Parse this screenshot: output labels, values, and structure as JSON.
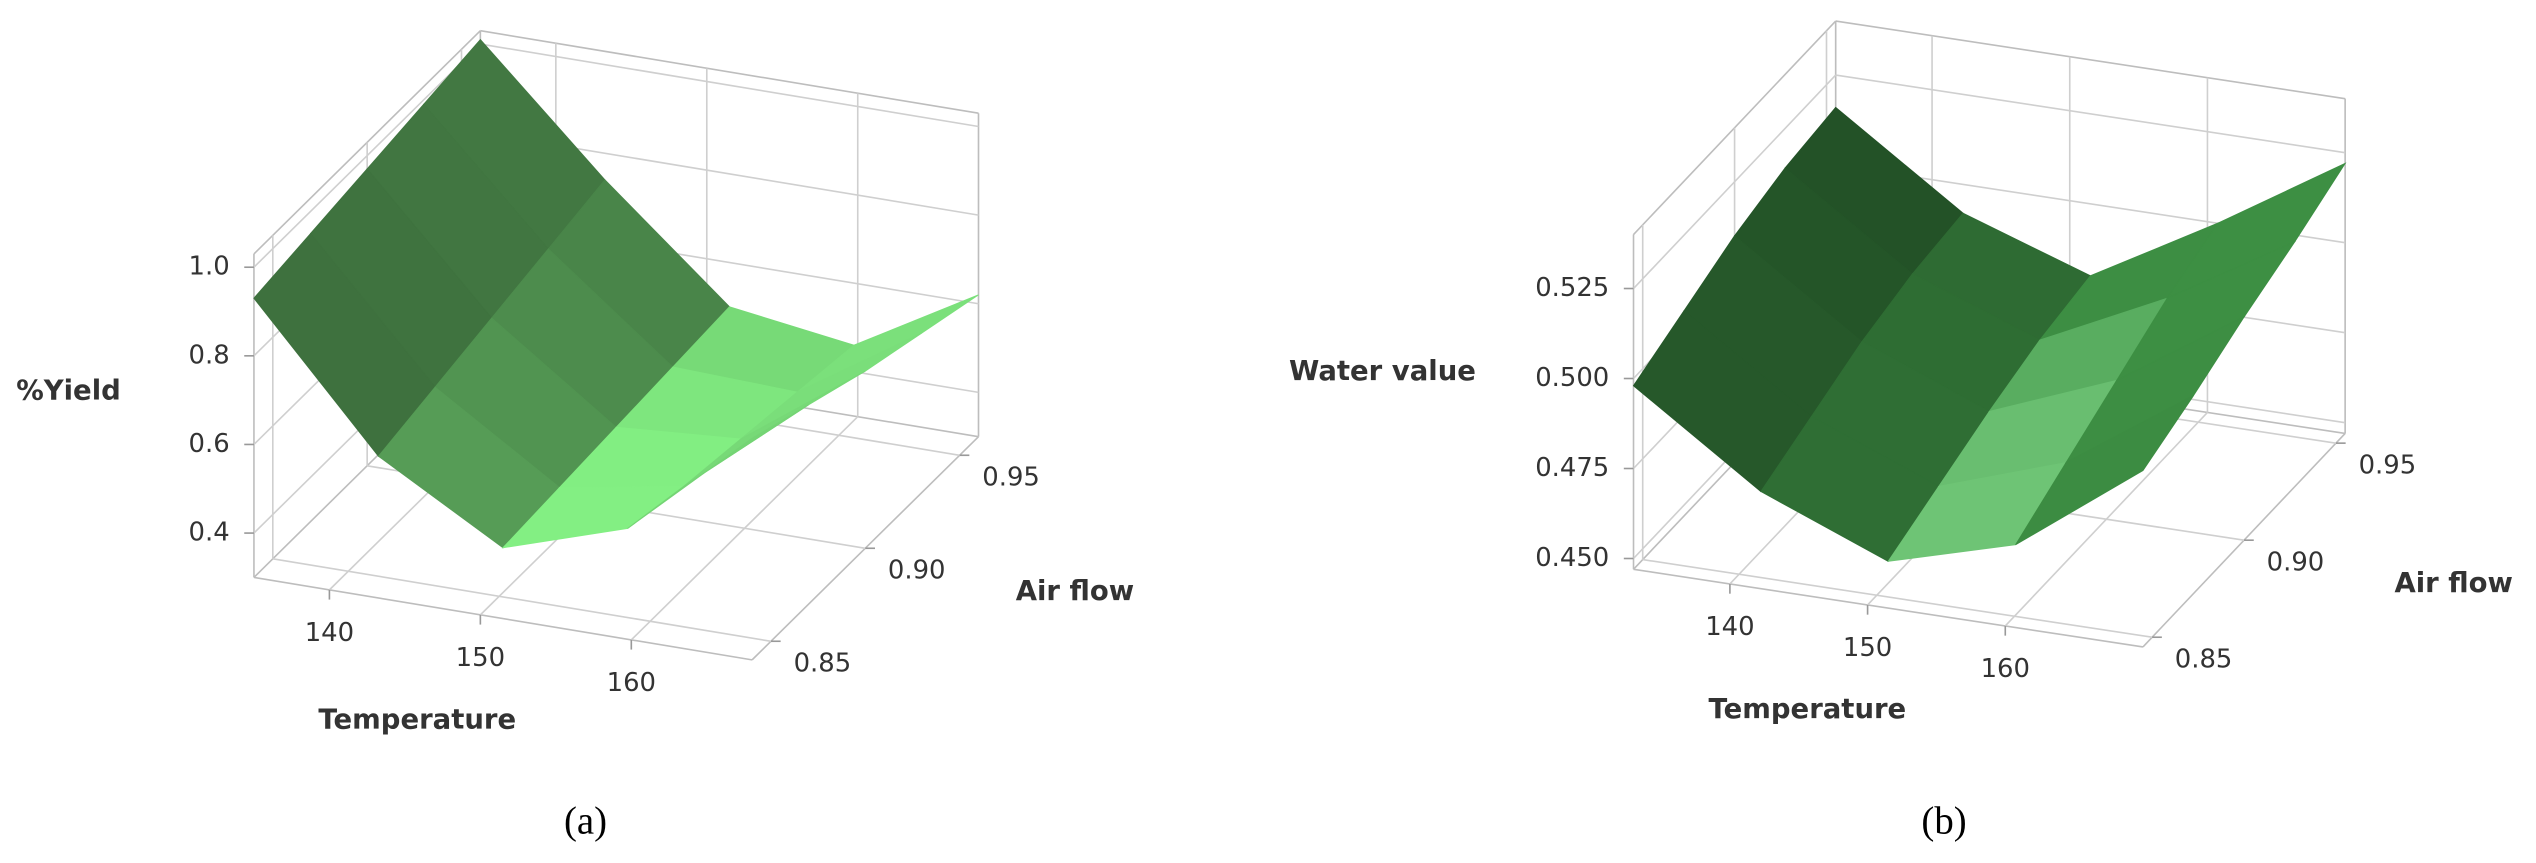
{
  "chart_data": [
    {
      "type": "surface",
      "caption": "(a)",
      "xlabel": "Temperature",
      "ylabel": "Air flow",
      "zlabel": "%Yield",
      "color": "#6cc56c",
      "xlim": [
        135,
        168
      ],
      "ylim": [
        0.84,
        0.96
      ],
      "zlim": [
        0.3,
        1.03
      ],
      "xticks": [
        140,
        150,
        160
      ],
      "yticks": [
        0.85,
        {
          "value": 0.9,
          "label": "0.90"
        },
        0.95
      ],
      "zticks": [
        0.4,
        0.6,
        0.8,
        {
          "value": 1,
          "label": "1.0"
        }
      ],
      "grid": true,
      "x": [
        135,
        143.25,
        151.5,
        159.75,
        168
      ],
      "y": [
        0.84,
        0.87,
        0.9,
        0.93,
        0.96
      ],
      "z": [
        [
          0.93,
          0.62,
          0.46,
          0.55,
          0.8
        ],
        [
          0.95,
          0.65,
          0.47,
          0.52,
          0.75
        ],
        [
          0.97,
          0.68,
          0.48,
          0.5,
          0.7
        ],
        [
          0.99,
          0.71,
          0.49,
          0.48,
          0.66
        ],
        [
          1.01,
          0.74,
          0.5,
          0.46,
          0.62
        ]
      ]
    },
    {
      "type": "surface",
      "caption": "(b)",
      "xlabel": "Temperature",
      "ylabel": "Air flow",
      "zlabel": "Water value",
      "color": "#2f6e34",
      "xlim": [
        133,
        170
      ],
      "ylim": [
        0.845,
        0.955
      ],
      "zlim": [
        0.447,
        0.54
      ],
      "xticks": [
        140,
        150,
        160
      ],
      "yticks": [
        0.85,
        {
          "value": 0.9,
          "label": "0.90"
        },
        0.95
      ],
      "zticks": [
        {
          "value": 0.45,
          "label": "0.450"
        },
        0.475,
        {
          "value": 0.5,
          "label": "0.500"
        },
        0.525
      ],
      "grid": true,
      "x": [
        133,
        142.25,
        151.5,
        160.75,
        170
      ],
      "y": [
        0.845,
        0.8725,
        0.9,
        0.9275,
        0.955
      ],
      "z": [
        [
          0.498,
          0.474,
          0.46,
          0.47,
          0.496
        ],
        [
          0.504,
          0.48,
          0.466,
          0.478,
          0.502
        ],
        [
          0.51,
          0.486,
          0.472,
          0.486,
          0.509
        ],
        [
          0.514,
          0.49,
          0.477,
          0.494,
          0.515
        ],
        [
          0.516,
          0.492,
          0.48,
          0.5,
          0.522
        ]
      ]
    }
  ]
}
